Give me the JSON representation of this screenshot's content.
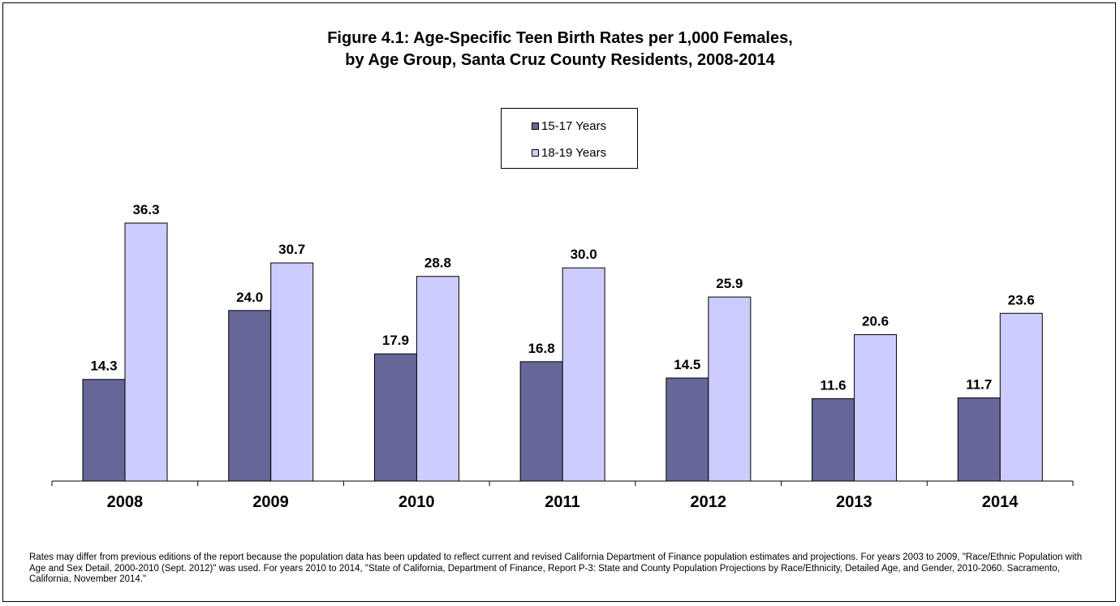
{
  "title_line1": "Figure 4.1:  Age-Specific Teen Birth Rates per 1,000 Females,",
  "title_line2": "by Age Group, Santa Cruz County Residents, 2008-2014",
  "footnote": "Rates may differ from previous editions of the report because the population data has been updated to reflect current and revised California Department of Finance population estimates and projections.  For years 2003 to 2009, \"Race/Ethnic Population with Age and Sex Detail, 2000-2010 (Sept. 2012)\" was used.  For years 2010 to 2014, \"State of California, Department of Finance, Report P-3: State and County Population Projections by Race/Ethnicity, Detailed Age, and Gender, 2010-2060. Sacramento, California, November 2014.\"",
  "colors": {
    "series1": "#666699",
    "series2": "#ccccff",
    "axis": "#000000"
  },
  "chart_data": {
    "type": "bar",
    "title": "Figure 4.1:  Age-Specific Teen Birth Rates per 1,000 Females, by Age Group, Santa Cruz County Residents, 2008-2014",
    "categories": [
      "2008",
      "2009",
      "2010",
      "2011",
      "2012",
      "2013",
      "2014"
    ],
    "series": [
      {
        "name": "15-17 Years",
        "values": [
          14.3,
          24.0,
          17.9,
          16.8,
          14.5,
          11.6,
          11.7
        ],
        "labels": [
          "14.3",
          "24.0",
          "17.9",
          "16.8",
          "14.5",
          "11.6",
          "11.7"
        ]
      },
      {
        "name": "18-19 Years",
        "values": [
          36.3,
          30.7,
          28.8,
          30.0,
          25.9,
          20.6,
          23.6
        ],
        "labels": [
          "36.3",
          "30.7",
          "28.8",
          "30.0",
          "25.9",
          "20.6",
          "23.6"
        ]
      }
    ],
    "ylim": [
      0,
      36.3
    ],
    "grid": false,
    "legend_position": "top-center",
    "xlabel": "",
    "ylabel": ""
  }
}
